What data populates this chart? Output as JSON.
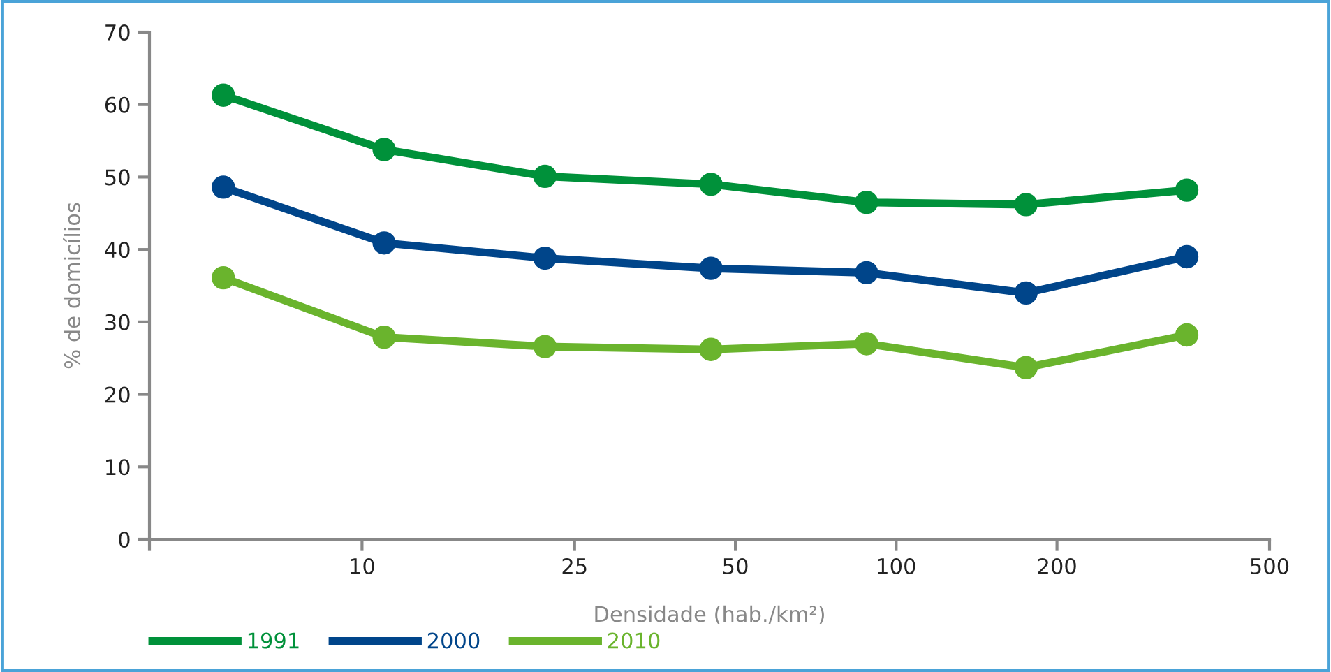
{
  "chart_data": {
    "type": "line",
    "xlabel": "Densidade (hab./km²)",
    "ylabel": "% de domicílios",
    "x": [
      5.5,
      11,
      22,
      45,
      88,
      175,
      350
    ],
    "xlim": [
      4,
      500
    ],
    "xticks": [
      {
        "value": 4,
        "label": null
      },
      10,
      25,
      50,
      100,
      200,
      500
    ],
    "log": "x",
    "ylim": [
      0,
      70
    ],
    "yticks": [
      0,
      10,
      20,
      30,
      40,
      50,
      60,
      70
    ],
    "series": [
      {
        "name": "1991",
        "color": "#00913a",
        "values": [
          61.3,
          53.8,
          50.1,
          49.0,
          46.5,
          46.2,
          48.2
        ]
      },
      {
        "name": "2000",
        "color": "#00458a",
        "values": [
          48.6,
          40.9,
          38.8,
          37.4,
          36.8,
          34.0,
          39.0
        ]
      },
      {
        "name": "2010",
        "color": "#6ab42d",
        "values": [
          36.1,
          27.9,
          26.6,
          26.2,
          27.0,
          23.7,
          28.2
        ]
      }
    ],
    "marker": "circle",
    "line_style": "solid",
    "legend": "bottom left",
    "grid": false
  }
}
